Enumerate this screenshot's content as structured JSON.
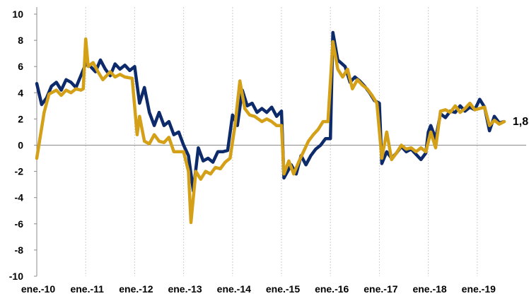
{
  "chart_data": {
    "type": "line",
    "title": "",
    "xlabel": "",
    "ylabel": "",
    "ylim": [
      -10,
      10
    ],
    "yticks": [
      -10,
      -8,
      -6,
      -4,
      -2,
      0,
      2,
      4,
      6,
      8,
      10
    ],
    "x_range": [
      2010.0,
      2020.0
    ],
    "x_ticks": [
      {
        "label": "ene.-10",
        "x": 2010
      },
      {
        "label": "ene.-11",
        "x": 2011
      },
      {
        "label": "ene.-12",
        "x": 2012
      },
      {
        "label": "ene.-13",
        "x": 2013
      },
      {
        "label": "ene.-14",
        "x": 2014
      },
      {
        "label": "ene.-15",
        "x": 2015
      },
      {
        "label": "ene.-16",
        "x": 2016
      },
      {
        "label": "ene.-17",
        "x": 2017
      },
      {
        "label": "ene.-18",
        "x": 2018
      },
      {
        "label": "ene.-19",
        "x": 2019
      }
    ],
    "grid": {
      "vertical": true,
      "horizontal": false
    },
    "legend": "none",
    "series": [
      {
        "color": "#0d2b6b",
        "points": [
          [
            2010.0,
            4.7
          ],
          [
            2010.1,
            3.1
          ],
          [
            2010.2,
            3.6
          ],
          [
            2010.3,
            4.5
          ],
          [
            2010.4,
            4.8
          ],
          [
            2010.5,
            4.2
          ],
          [
            2010.6,
            5.0
          ],
          [
            2010.7,
            4.8
          ],
          [
            2010.8,
            4.4
          ],
          [
            2010.9,
            5.3
          ],
          [
            2011.0,
            6.2
          ],
          [
            2011.1,
            6.0
          ],
          [
            2011.2,
            5.6
          ],
          [
            2011.3,
            6.5
          ],
          [
            2011.4,
            5.8
          ],
          [
            2011.5,
            5.3
          ],
          [
            2011.6,
            6.2
          ],
          [
            2011.7,
            5.8
          ],
          [
            2011.8,
            6.1
          ],
          [
            2011.9,
            5.7
          ],
          [
            2012.0,
            6.0
          ],
          [
            2012.1,
            3.2
          ],
          [
            2012.2,
            4.4
          ],
          [
            2012.3,
            2.5
          ],
          [
            2012.4,
            1.5
          ],
          [
            2012.5,
            2.5
          ],
          [
            2012.6,
            1.5
          ],
          [
            2012.7,
            1.8
          ],
          [
            2012.8,
            0.8
          ],
          [
            2012.9,
            1.0
          ],
          [
            2013.0,
            0.0
          ],
          [
            2013.1,
            -0.8
          ],
          [
            2013.2,
            -3.5
          ],
          [
            2013.3,
            -0.2
          ],
          [
            2013.4,
            -1.2
          ],
          [
            2013.5,
            -1.0
          ],
          [
            2013.6,
            -1.3
          ],
          [
            2013.7,
            -0.5
          ],
          [
            2013.8,
            -0.5
          ],
          [
            2013.9,
            -0.4
          ],
          [
            2014.0,
            2.3
          ],
          [
            2014.1,
            1.5
          ],
          [
            2014.2,
            4.2
          ],
          [
            2014.3,
            3.0
          ],
          [
            2014.4,
            3.2
          ],
          [
            2014.5,
            2.5
          ],
          [
            2014.6,
            2.8
          ],
          [
            2014.7,
            2.5
          ],
          [
            2014.8,
            2.9
          ],
          [
            2014.9,
            2.2
          ],
          [
            2015.0,
            2.6
          ],
          [
            2015.05,
            -2.5
          ],
          [
            2015.2,
            -1.5
          ],
          [
            2015.3,
            -2.2
          ],
          [
            2015.4,
            -0.8
          ],
          [
            2015.5,
            -1.5
          ],
          [
            2015.6,
            -0.8
          ],
          [
            2015.7,
            -0.3
          ],
          [
            2015.8,
            0.0
          ],
          [
            2015.9,
            0.5
          ],
          [
            2016.0,
            0.5
          ],
          [
            2016.05,
            8.6
          ],
          [
            2016.15,
            6.5
          ],
          [
            2016.3,
            6.0
          ],
          [
            2016.4,
            4.8
          ],
          [
            2016.5,
            5.2
          ],
          [
            2016.6,
            4.9
          ],
          [
            2016.7,
            4.5
          ],
          [
            2016.8,
            4.0
          ],
          [
            2016.9,
            3.4
          ],
          [
            2017.0,
            3.2
          ],
          [
            2017.05,
            -1.4
          ],
          [
            2017.15,
            -0.5
          ],
          [
            2017.25,
            -1.0
          ],
          [
            2017.35,
            -0.6
          ],
          [
            2017.45,
            -0.1
          ],
          [
            2017.55,
            -0.5
          ],
          [
            2017.65,
            -0.3
          ],
          [
            2017.75,
            -0.7
          ],
          [
            2017.85,
            -1.1
          ],
          [
            2017.95,
            -0.6
          ],
          [
            2018.0,
            1.0
          ],
          [
            2018.05,
            1.5
          ],
          [
            2018.15,
            0.5
          ],
          [
            2018.25,
            2.4
          ],
          [
            2018.35,
            2.1
          ],
          [
            2018.45,
            2.6
          ],
          [
            2018.55,
            2.5
          ],
          [
            2018.65,
            3.0
          ],
          [
            2018.75,
            2.6
          ],
          [
            2018.85,
            2.9
          ],
          [
            2018.95,
            2.7
          ],
          [
            2019.05,
            3.5
          ],
          [
            2019.15,
            2.9
          ],
          [
            2019.25,
            1.1
          ],
          [
            2019.35,
            2.2
          ],
          [
            2019.45,
            1.7
          ],
          [
            2019.55,
            1.8
          ]
        ]
      },
      {
        "color": "#d4a017",
        "points": [
          [
            2010.0,
            -1.0
          ],
          [
            2010.15,
            2.5
          ],
          [
            2010.25,
            3.9
          ],
          [
            2010.4,
            4.2
          ],
          [
            2010.5,
            3.8
          ],
          [
            2010.6,
            4.2
          ],
          [
            2010.7,
            4.0
          ],
          [
            2010.8,
            4.3
          ],
          [
            2010.9,
            4.2
          ],
          [
            2010.95,
            4.3
          ],
          [
            2011.0,
            8.1
          ],
          [
            2011.05,
            6.0
          ],
          [
            2011.15,
            6.3
          ],
          [
            2011.25,
            5.6
          ],
          [
            2011.35,
            5.0
          ],
          [
            2011.5,
            5.6
          ],
          [
            2011.6,
            5.2
          ],
          [
            2011.7,
            5.4
          ],
          [
            2011.8,
            5.2
          ],
          [
            2011.95,
            5.1
          ],
          [
            2012.05,
            0.8
          ],
          [
            2012.1,
            2.2
          ],
          [
            2012.2,
            0.3
          ],
          [
            2012.3,
            0.1
          ],
          [
            2012.4,
            0.8
          ],
          [
            2012.5,
            0.3
          ],
          [
            2012.6,
            0.2
          ],
          [
            2012.7,
            0.6
          ],
          [
            2012.8,
            -0.5
          ],
          [
            2012.9,
            -0.5
          ],
          [
            2013.0,
            -0.5
          ],
          [
            2013.1,
            -2.0
          ],
          [
            2013.15,
            -5.9
          ],
          [
            2013.25,
            -2.0
          ],
          [
            2013.35,
            -2.6
          ],
          [
            2013.45,
            -2.0
          ],
          [
            2013.55,
            -2.2
          ],
          [
            2013.65,
            -1.7
          ],
          [
            2013.75,
            -1.8
          ],
          [
            2013.85,
            -1.3
          ],
          [
            2013.95,
            -1.0
          ],
          [
            2014.05,
            1.5
          ],
          [
            2014.15,
            4.9
          ],
          [
            2014.25,
            2.8
          ],
          [
            2014.35,
            2.3
          ],
          [
            2014.45,
            2.2
          ],
          [
            2014.6,
            1.8
          ],
          [
            2014.7,
            2.0
          ],
          [
            2014.8,
            1.8
          ],
          [
            2014.9,
            1.5
          ],
          [
            2015.0,
            1.5
          ],
          [
            2015.05,
            -2.2
          ],
          [
            2015.15,
            -1.2
          ],
          [
            2015.25,
            -2.2
          ],
          [
            2015.35,
            -1.3
          ],
          [
            2015.45,
            -0.5
          ],
          [
            2015.55,
            0.3
          ],
          [
            2015.65,
            0.8
          ],
          [
            2015.75,
            1.2
          ],
          [
            2015.85,
            1.8
          ],
          [
            2015.95,
            1.8
          ],
          [
            2016.05,
            7.9
          ],
          [
            2016.15,
            5.8
          ],
          [
            2016.25,
            5.2
          ],
          [
            2016.35,
            5.8
          ],
          [
            2016.45,
            4.3
          ],
          [
            2016.55,
            5.0
          ],
          [
            2016.65,
            4.6
          ],
          [
            2016.75,
            4.3
          ],
          [
            2016.85,
            3.8
          ],
          [
            2016.95,
            3.2
          ],
          [
            2017.05,
            -1.0
          ],
          [
            2017.15,
            1.0
          ],
          [
            2017.25,
            -1.1
          ],
          [
            2017.35,
            -0.6
          ],
          [
            2017.45,
            0.0
          ],
          [
            2017.55,
            -0.3
          ],
          [
            2017.65,
            -0.2
          ],
          [
            2017.75,
            -0.5
          ],
          [
            2017.85,
            -0.2
          ],
          [
            2017.95,
            -0.5
          ],
          [
            2018.05,
            1.0
          ],
          [
            2018.15,
            -0.2
          ],
          [
            2018.25,
            2.6
          ],
          [
            2018.35,
            2.7
          ],
          [
            2018.45,
            2.5
          ],
          [
            2018.55,
            3.0
          ],
          [
            2018.65,
            2.5
          ],
          [
            2018.75,
            2.8
          ],
          [
            2018.85,
            3.2
          ],
          [
            2018.95,
            2.7
          ],
          [
            2019.05,
            2.8
          ],
          [
            2019.15,
            2.9
          ],
          [
            2019.25,
            1.5
          ],
          [
            2019.35,
            1.9
          ],
          [
            2019.45,
            1.6
          ],
          [
            2019.55,
            1.8
          ]
        ]
      }
    ],
    "annotations": [
      {
        "text": "1,8",
        "x": 2019.55,
        "y": 1.8
      }
    ]
  }
}
